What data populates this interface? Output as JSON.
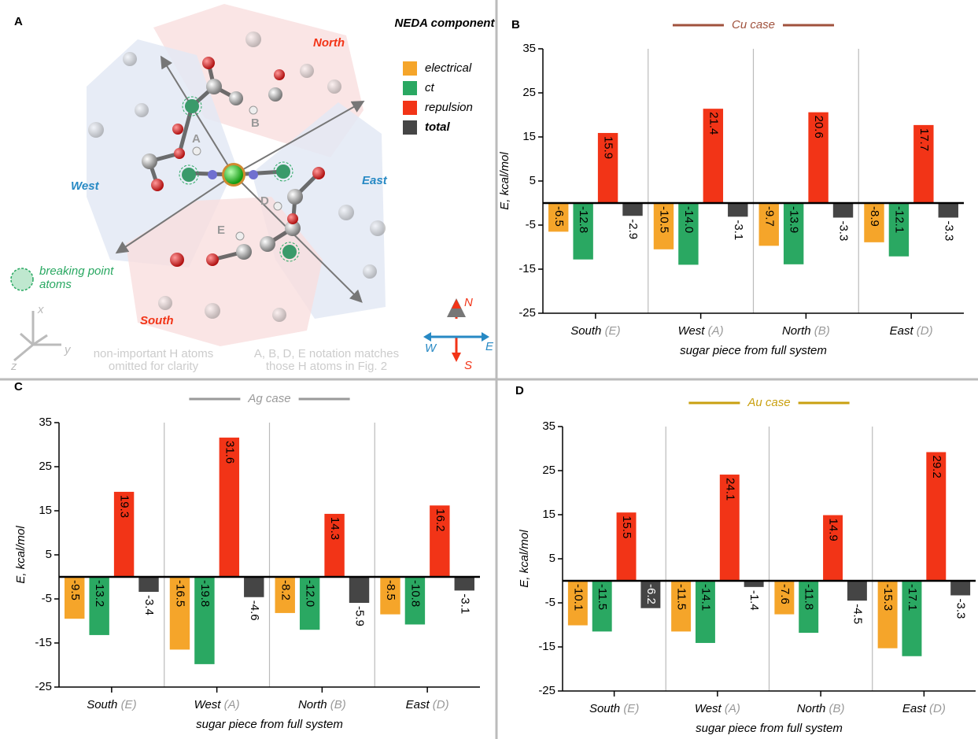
{
  "panel_a": {
    "label": "A",
    "legend_title": "NEDA component",
    "north": "North",
    "south": "South",
    "west": "West",
    "east": "East",
    "h_labels": [
      "A",
      "B",
      "D",
      "E"
    ],
    "breaking_note": [
      "breaking point",
      "atoms"
    ],
    "h_note": [
      "non-important H atoms",
      "omitted for clarity"
    ],
    "notation_note": [
      "A, B, D, E notation matches",
      "those H atoms in Fig. 2"
    ],
    "compass": {
      "n": "N",
      "s": "S",
      "w": "W",
      "e": "E"
    },
    "axes": {
      "x": "x",
      "y": "y",
      "z": "z"
    }
  },
  "chart_data": [
    {
      "type": "bar",
      "panel_label": "B",
      "title": "Cu case",
      "title_color": "#a0523d",
      "ylabel": "E, kcal/mol",
      "xlabel": "sugar piece from full system",
      "categories": [
        "South",
        "West",
        "North",
        "East"
      ],
      "category_notes": [
        "(E)",
        "(A)",
        "(B)",
        "(D)"
      ],
      "ylim": [
        -25,
        35
      ],
      "yticks": [
        -25,
        -15,
        -5,
        5,
        15,
        25,
        35
      ],
      "series": [
        {
          "name": "electrical",
          "color": "#f5a52a",
          "values": [
            -6.5,
            -10.5,
            -9.7,
            -8.9
          ],
          "value_labels": [
            "-6.5",
            "-10.5",
            "-9.7",
            "-8.9"
          ]
        },
        {
          "name": "ct",
          "color": "#2aa862",
          "values": [
            -12.8,
            -14.0,
            -13.9,
            -12.1
          ],
          "value_labels": [
            "-12.8",
            "-14.0",
            "-13.9",
            "-12.1"
          ]
        },
        {
          "name": "repulsion",
          "color": "#f23417",
          "values": [
            15.9,
            21.4,
            20.6,
            17.7
          ],
          "value_labels": [
            "15.9",
            "21.4",
            "20.6",
            "17.7"
          ]
        },
        {
          "name": "total",
          "color": "#454545",
          "values": [
            -2.9,
            -3.1,
            -3.3,
            -3.3
          ],
          "value_labels": [
            "-2.9",
            "-3.1",
            "-3.3",
            "-3.3"
          ]
        }
      ]
    },
    {
      "type": "bar",
      "panel_label": "C",
      "title": "Ag case",
      "title_color": "#9a9a9a",
      "ylabel": "E, kcal/mol",
      "xlabel": "sugar piece from full system",
      "categories": [
        "South",
        "West",
        "North",
        "East"
      ],
      "category_notes": [
        "(E)",
        "(A)",
        "(B)",
        "(D)"
      ],
      "ylim": [
        -25,
        35
      ],
      "yticks": [
        -25,
        -15,
        -5,
        5,
        15,
        25,
        35
      ],
      "series": [
        {
          "color": "#f5a52a",
          "values": [
            -9.5,
            -16.5,
            -8.2,
            -8.5
          ],
          "value_labels": [
            "-9.5",
            "-16.5",
            "-8.2",
            "-8.5"
          ]
        },
        {
          "color": "#2aa862",
          "values": [
            -13.2,
            -19.8,
            -12.0,
            -10.8
          ],
          "value_labels": [
            "-13.2",
            "-19.8",
            "-12.0",
            "-10.8"
          ]
        },
        {
          "color": "#f23417",
          "values": [
            19.3,
            31.6,
            14.3,
            16.2
          ],
          "value_labels": [
            "19.3",
            "31.6",
            "14.3",
            "16.2"
          ]
        },
        {
          "color": "#454545",
          "values": [
            -3.4,
            -4.6,
            -5.9,
            -3.1
          ],
          "value_labels": [
            "-3.4",
            "-4.6",
            "-5.9",
            "-3.1"
          ]
        }
      ]
    },
    {
      "type": "bar",
      "panel_label": "D",
      "title": "Au case",
      "title_color": "#c9a010",
      "ylabel": "E, kcal/mol",
      "xlabel": "sugar piece from full system",
      "categories": [
        "South",
        "West",
        "North",
        "East"
      ],
      "category_notes": [
        "(E)",
        "(A)",
        "(B)",
        "(D)"
      ],
      "ylim": [
        -25,
        35
      ],
      "yticks": [
        -25,
        -15,
        -5,
        5,
        15,
        25,
        35
      ],
      "series": [
        {
          "color": "#f5a52a",
          "values": [
            -10.1,
            -11.5,
            -7.6,
            -15.3
          ],
          "value_labels": [
            "-10.1",
            "-11.5",
            "-7.6",
            "-15.3"
          ]
        },
        {
          "color": "#2aa862",
          "values": [
            -11.5,
            -14.1,
            -11.8,
            -17.1
          ],
          "value_labels": [
            "-11.5",
            "-14.1",
            "-11.8",
            "-17.1"
          ]
        },
        {
          "color": "#f23417",
          "values": [
            15.5,
            24.1,
            14.9,
            29.2
          ],
          "value_labels": [
            "15.5",
            "24.1",
            "14.9",
            "29.2"
          ]
        },
        {
          "color": "#454545",
          "values": [
            -6.2,
            -1.4,
            -4.5,
            -3.3
          ],
          "value_labels": [
            "-6.2",
            "-1.4",
            "-4.5",
            "-3.3"
          ]
        }
      ]
    }
  ]
}
